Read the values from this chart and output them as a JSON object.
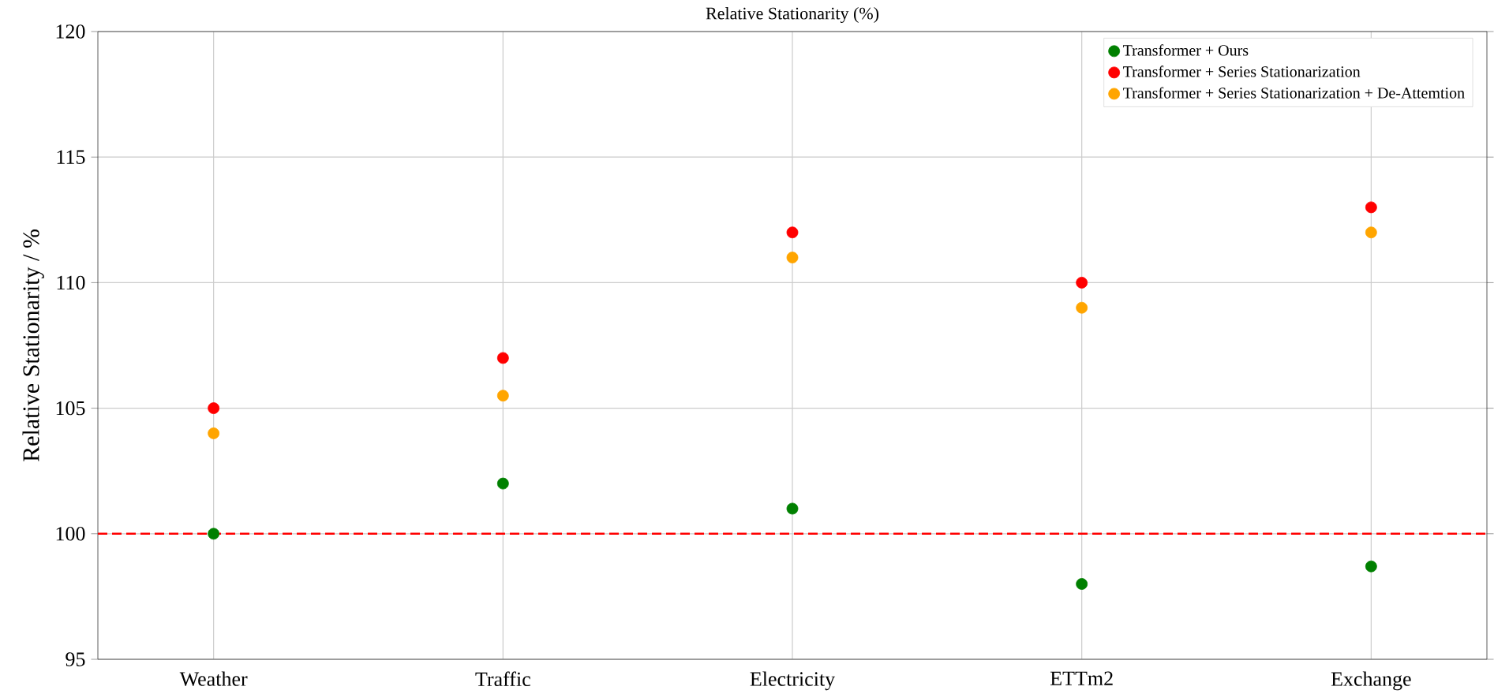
{
  "chart_data": {
    "type": "scatter",
    "title": "Relative Stationarity (%)",
    "ylabel": "Relative Stationarity / %",
    "categories": [
      "Weather",
      "Traffic",
      "Electricity",
      "ETTm2",
      "Exchange"
    ],
    "series": [
      {
        "name": "Transformer + Ours",
        "color": "#008000",
        "values": [
          100,
          102,
          101,
          98,
          98.7
        ]
      },
      {
        "name": "Transformer + Series Stationarization",
        "color": "#ff0000",
        "values": [
          105,
          107,
          112,
          110,
          113
        ]
      },
      {
        "name": "Transformer + Series Stationarization + De-Attemtion",
        "color": "#ffa500",
        "values": [
          104,
          105.5,
          111,
          109,
          112
        ]
      }
    ],
    "ylim": [
      95,
      120
    ],
    "yticks": [
      95,
      100,
      105,
      110,
      115,
      120
    ],
    "ref_lines": [
      {
        "axis": "y",
        "value": 100,
        "color": "#ff0000",
        "line_style": "dashed"
      }
    ],
    "grid": true,
    "legend": "top right"
  }
}
